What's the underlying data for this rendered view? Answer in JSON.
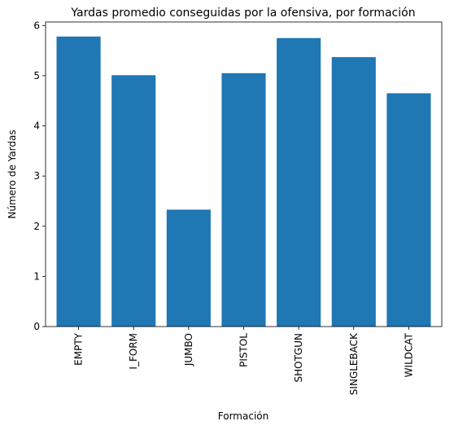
{
  "chart_data": {
    "type": "bar",
    "title": "Yardas promedio conseguidas por la ofensiva, por formación",
    "xlabel": "Formación",
    "ylabel": "Número de Yardas",
    "categories": [
      "EMPTY",
      "I_FORM",
      "JUMBO",
      "PISTOL",
      "SHOTGUN",
      "SINGLEBACK",
      "WILDCAT"
    ],
    "values": [
      5.78,
      5.01,
      2.33,
      5.05,
      5.75,
      5.37,
      4.65
    ],
    "ylim": [
      0,
      6.07
    ],
    "yticks": [
      0,
      1,
      2,
      3,
      4,
      5,
      6
    ],
    "bar_color": "#1f77b4",
    "grid": false
  }
}
